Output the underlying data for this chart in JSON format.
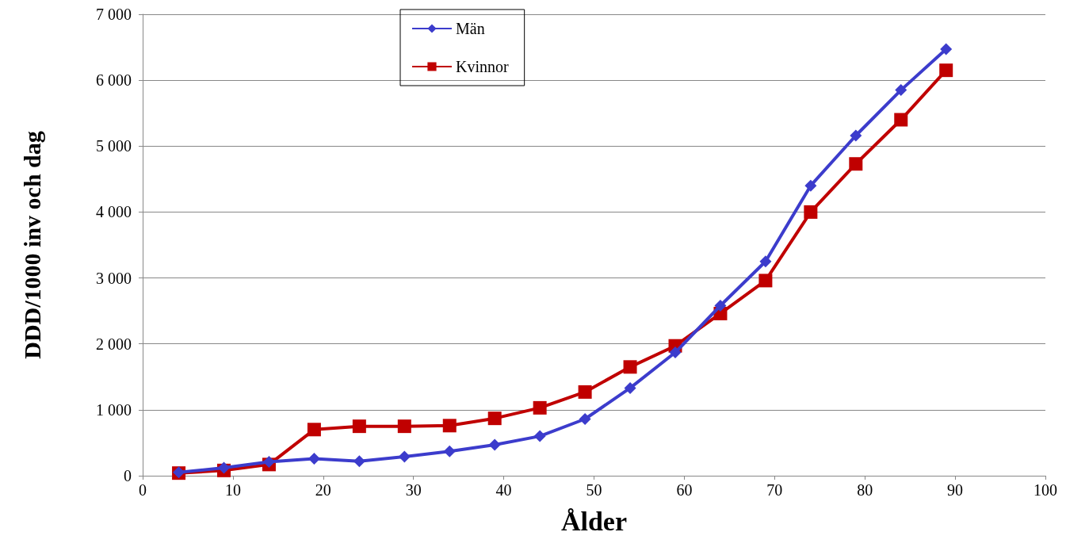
{
  "chart_data": {
    "type": "line",
    "xlabel": "Ålder",
    "ylabel": "DDD/1000 inv och dag",
    "x": [
      4,
      9,
      14,
      19,
      24,
      29,
      34,
      39,
      44,
      49,
      54,
      59,
      64,
      69,
      74,
      79,
      84,
      89
    ],
    "series": [
      {
        "name": "Män",
        "color": "#3c3ccc",
        "marker": "diamond",
        "values": [
          50,
          120,
          210,
          260,
          220,
          290,
          370,
          470,
          600,
          860,
          1330,
          1870,
          2580,
          3250,
          4400,
          5160,
          5850,
          6470
        ]
      },
      {
        "name": "Kvinnor",
        "color": "#c00000",
        "marker": "square",
        "values": [
          40,
          80,
          170,
          700,
          750,
          750,
          760,
          870,
          1030,
          1270,
          1650,
          1970,
          2460,
          2960,
          4000,
          4730,
          5400,
          6150
        ]
      }
    ],
    "xlim": [
      0,
      100
    ],
    "xticks": [
      0,
      10,
      20,
      30,
      40,
      50,
      60,
      70,
      80,
      90,
      100
    ],
    "ylim": [
      0,
      7000
    ],
    "yticks": [
      0,
      {
        "value": 1000,
        "label": "1 000"
      },
      {
        "value": 2000,
        "label": "2 000"
      },
      {
        "value": 3000,
        "label": "3 000"
      },
      {
        "value": 4000,
        "label": "4 000"
      },
      {
        "value": 5000,
        "label": "5 000"
      },
      {
        "value": 6000,
        "label": "6 000"
      },
      {
        "value": 7000,
        "label": "7 000"
      }
    ],
    "grid": "y",
    "legend": "top left",
    "line_style": "solid"
  }
}
